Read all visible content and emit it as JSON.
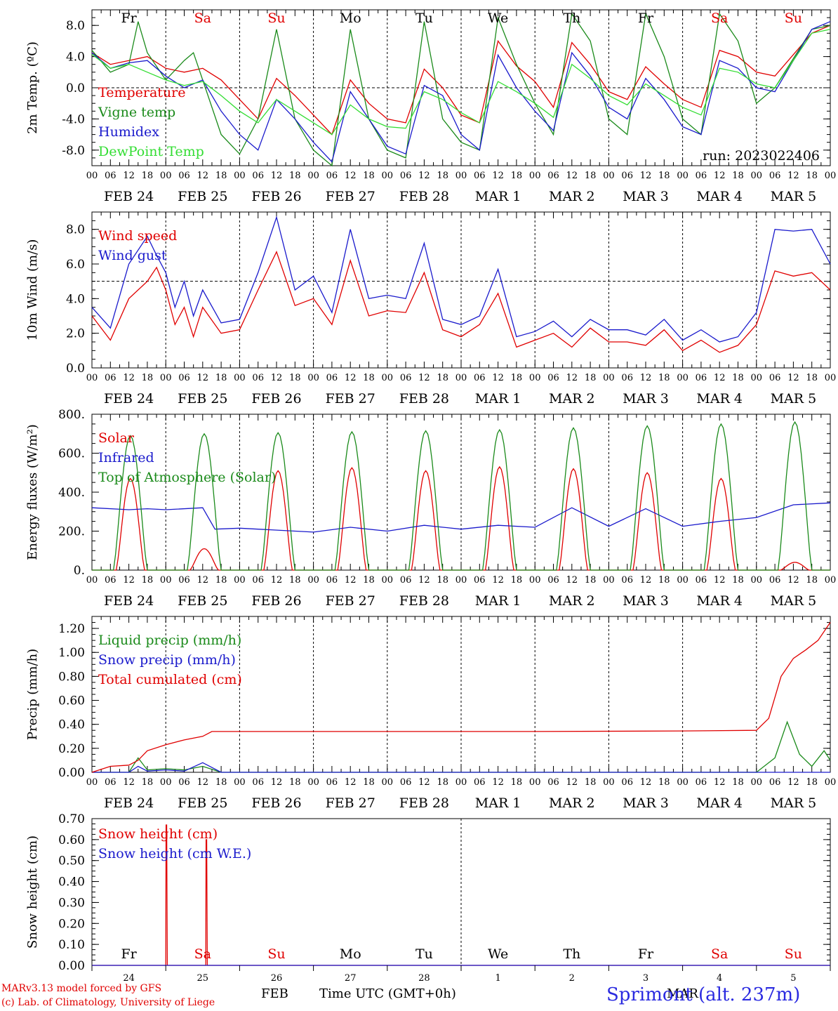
{
  "run_label": "run: 2023022406",
  "days": [
    "Fr",
    "Sa",
    "Su",
    "Mo",
    "Tu",
    "We",
    "Th",
    "Fr",
    "Sa",
    "Su"
  ],
  "day_colors": [
    "#000000",
    "#e00000",
    "#e00000",
    "#000000",
    "#000000",
    "#000000",
    "#000000",
    "#000000",
    "#e00000",
    "#e00000"
  ],
  "date_labels": [
    "FEB 24",
    "FEB 25",
    "FEB 26",
    "FEB 27",
    "FEB 28",
    "MAR  1",
    "MAR  2",
    "MAR  3",
    "MAR  4",
    "MAR  5"
  ],
  "hour_ticks": [
    "00",
    "06",
    "12",
    "18"
  ],
  "hour_tick_end": "00",
  "footer": {
    "model": "MARv3.13 model forced by GFS",
    "copyright": "(c) Lab. of Climatology, University of Liege",
    "month_feb": "FEB",
    "month_mar": "MAR",
    "time_axis": "Time UTC (GMT+0h)",
    "station": "Sprimont (alt. 237m)"
  },
  "snow_day_numbers": [
    "24",
    "25",
    "26",
    "27",
    "28",
    "1",
    "2",
    "3",
    "4",
    "5"
  ],
  "chart_data": [
    {
      "type": "line",
      "ylabel": "2m Temp. (ºC)",
      "ylim": [
        -10,
        10
      ],
      "yticks": [
        "8.0",
        "4.0",
        "0.0",
        "-4.0",
        "-8.0"
      ],
      "ytick_values": [
        8,
        4,
        0,
        -4,
        -8
      ],
      "zero_line": 0,
      "series": [
        {
          "name": "Temperature",
          "color": "#e00000",
          "x": [
            0,
            6,
            12,
            18,
            24,
            30,
            36,
            42,
            48,
            54,
            60,
            66,
            72,
            78,
            84,
            90,
            96,
            102,
            108,
            114,
            120,
            126,
            132,
            138,
            144,
            150,
            156,
            162,
            168,
            174,
            180,
            186,
            192,
            198,
            204,
            210,
            216,
            222,
            234,
            240
          ],
          "values": [
            4.5,
            3,
            3.5,
            4,
            2.5,
            2,
            2.5,
            1,
            -1.5,
            -4,
            1.2,
            -1,
            -3.5,
            -6,
            1,
            -2,
            -4,
            -4.5,
            2.4,
            0,
            -3.5,
            -4.5,
            6,
            2.8,
            0.8,
            -2.5,
            5.8,
            3,
            -0.5,
            -1.5,
            2.7,
            0.5,
            -1.5,
            -2.5,
            4.8,
            4,
            2,
            1.5,
            7,
            8
          ]
        },
        {
          "name": "Vigne temp",
          "color": "#1a8a1a",
          "x": [
            0,
            6,
            12,
            15,
            18,
            24,
            30,
            33,
            36,
            42,
            48,
            54,
            60,
            66,
            72,
            78,
            84,
            90,
            96,
            102,
            108,
            114,
            120,
            126,
            132,
            138,
            144,
            150,
            156,
            162,
            168,
            174,
            180,
            186,
            192,
            198,
            204,
            210,
            216,
            222,
            234,
            240
          ],
          "values": [
            4.8,
            2,
            3,
            8.5,
            4.5,
            1,
            3.5,
            4.5,
            1,
            -6,
            -8.5,
            -4,
            7.5,
            -4,
            -8,
            -10,
            7.5,
            -4,
            -8,
            -9,
            8.5,
            -4,
            -7,
            -8,
            9,
            3,
            -2,
            -6,
            9.5,
            6,
            -4,
            -6,
            9.5,
            4,
            -4,
            -6,
            9.5,
            6,
            -2,
            0,
            7.5,
            8
          ]
        },
        {
          "name": "Humidex",
          "color": "#1a1acc",
          "x": [
            0,
            6,
            12,
            18,
            24,
            30,
            36,
            42,
            48,
            54,
            60,
            66,
            72,
            78,
            84,
            90,
            96,
            102,
            108,
            114,
            120,
            126,
            132,
            138,
            144,
            150,
            156,
            162,
            168,
            174,
            180,
            186,
            192,
            198,
            204,
            210,
            216,
            222,
            234,
            240
          ],
          "values": [
            4.5,
            2.5,
            3.2,
            3.5,
            1.5,
            0,
            1,
            -3,
            -6,
            -8,
            -1.5,
            -4,
            -7,
            -9.5,
            -0.5,
            -4,
            -7.5,
            -8.5,
            0.3,
            -1,
            -6,
            -8,
            4.2,
            0,
            -3,
            -5.5,
            4.5,
            1.5,
            -2.5,
            -4,
            1.2,
            -1.5,
            -5,
            -6,
            3.5,
            2.5,
            0,
            -0.5,
            7.5,
            8.5
          ]
        },
        {
          "name": "DewPoint Temp",
          "color": "#33dd33",
          "x": [
            0,
            6,
            12,
            18,
            24,
            30,
            36,
            42,
            48,
            54,
            60,
            66,
            72,
            78,
            84,
            90,
            96,
            102,
            108,
            114,
            120,
            126,
            132,
            138,
            144,
            150,
            156,
            162,
            168,
            174,
            180,
            186,
            192,
            198,
            204,
            210,
            216,
            222,
            234,
            240
          ],
          "values": [
            4.3,
            2.5,
            3,
            2,
            1,
            0.3,
            0.8,
            -1,
            -3,
            -4.5,
            -1.5,
            -3,
            -4.5,
            -6,
            -2.2,
            -4,
            -5,
            -5.2,
            -0.5,
            -1.5,
            -3.2,
            -4.5,
            0.8,
            -0.5,
            -2,
            -3.8,
            3,
            1.2,
            -1,
            -2.2,
            0.5,
            -1,
            -2.5,
            -3.5,
            2.5,
            2,
            0.5,
            0,
            7,
            7.5
          ]
        }
      ]
    },
    {
      "type": "line",
      "ylabel": "10m Wind (m/s)",
      "ylim": [
        0,
        9
      ],
      "yticks": [
        "8.0",
        "6.0",
        "4.0",
        "2.0",
        "0.0"
      ],
      "ytick_values": [
        8,
        6,
        4,
        2,
        0
      ],
      "ref_line": 5,
      "series": [
        {
          "name": "Wind speed",
          "color": "#e00000",
          "x": [
            0,
            6,
            12,
            18,
            21,
            24,
            27,
            30,
            33,
            36,
            42,
            48,
            54,
            60,
            66,
            72,
            78,
            84,
            90,
            96,
            102,
            108,
            114,
            120,
            126,
            132,
            138,
            144,
            150,
            156,
            162,
            168,
            174,
            180,
            186,
            192,
            198,
            204,
            210,
            216,
            222,
            228,
            234,
            240
          ],
          "values": [
            3,
            1.6,
            4,
            5,
            5.8,
            4.5,
            2.5,
            3.5,
            1.8,
            3.5,
            2,
            2.2,
            4.5,
            6.7,
            3.6,
            4,
            2.5,
            6.2,
            3,
            3.3,
            3.2,
            5.5,
            2.2,
            1.8,
            2.5,
            4.3,
            1.2,
            1.6,
            2,
            1.2,
            2.3,
            1.5,
            1.5,
            1.3,
            2.2,
            1,
            1.6,
            0.9,
            1.3,
            2.5,
            5.6,
            5.3,
            5.5,
            4.5
          ]
        },
        {
          "name": "Wind gust",
          "color": "#1a1acc",
          "x": [
            0,
            6,
            12,
            18,
            21,
            24,
            27,
            30,
            33,
            36,
            42,
            48,
            54,
            60,
            66,
            72,
            78,
            84,
            90,
            96,
            102,
            108,
            114,
            120,
            126,
            132,
            138,
            144,
            150,
            156,
            162,
            168,
            174,
            180,
            186,
            192,
            198,
            204,
            210,
            216,
            222,
            228,
            234,
            240
          ],
          "values": [
            3.5,
            2.3,
            6,
            7.6,
            6.5,
            5.5,
            3.5,
            5,
            3,
            4.5,
            2.6,
            2.8,
            5.5,
            8.7,
            4.5,
            5.3,
            3.2,
            8,
            4,
            4.2,
            4,
            7.2,
            2.8,
            2.5,
            3,
            5.7,
            1.8,
            2.1,
            2.7,
            1.8,
            2.8,
            2.2,
            2.2,
            1.9,
            2.8,
            1.6,
            2.2,
            1.5,
            1.8,
            3.2,
            8,
            7.9,
            8,
            6
          ]
        }
      ]
    },
    {
      "type": "line",
      "ylabel": "Energy fluxes (W/m²)",
      "ylim": [
        0,
        800
      ],
      "yticks": [
        "800.",
        "600.",
        "400.",
        "200.",
        "0."
      ],
      "ytick_values": [
        800,
        600,
        400,
        200,
        0
      ],
      "series": [
        {
          "name": "Solar",
          "color": "#e00000",
          "day_peaks": [
            470,
            110,
            510,
            525,
            510,
            530,
            520,
            500,
            470,
            40
          ]
        },
        {
          "name": "Infrared",
          "color": "#1a1acc",
          "x": [
            0,
            12,
            18,
            24,
            36,
            40,
            48,
            72,
            84,
            96,
            108,
            120,
            132,
            144,
            156,
            168,
            180,
            192,
            204,
            216,
            228,
            240
          ],
          "values": [
            320,
            310,
            315,
            310,
            320,
            210,
            215,
            195,
            220,
            200,
            230,
            210,
            230,
            220,
            320,
            225,
            315,
            225,
            250,
            270,
            335,
            345
          ]
        },
        {
          "name": "Top of Atmosphere (Solar)",
          "color": "#1a8a1a",
          "day_peaks": [
            690,
            700,
            705,
            710,
            715,
            720,
            730,
            740,
            750,
            760
          ]
        }
      ]
    },
    {
      "type": "line",
      "ylabel": "Precip (mm/h)",
      "ylim": [
        0,
        1.3
      ],
      "yticks": [
        "1.20",
        "1.00",
        "0.80",
        "0.60",
        "0.40",
        "0.20",
        "0.00"
      ],
      "ytick_values": [
        1.2,
        1.0,
        0.8,
        0.6,
        0.4,
        0.2,
        0.0
      ],
      "series": [
        {
          "name": "Liquid precip (mm/h)",
          "color": "#1a8a1a",
          "x": [
            0,
            12,
            15,
            18,
            24,
            30,
            36,
            42,
            216,
            222,
            226,
            230,
            234,
            238,
            240
          ],
          "values": [
            0,
            0,
            0.12,
            0.02,
            0.03,
            0.02,
            0.05,
            0,
            0,
            0.12,
            0.42,
            0.15,
            0.05,
            0.18,
            0.1
          ]
        },
        {
          "name": "Snow precip (mm/h)",
          "color": "#1a1acc",
          "x": [
            0,
            12,
            15,
            18,
            24,
            30,
            36,
            42,
            240
          ],
          "values": [
            0,
            0,
            0.05,
            0.01,
            0.02,
            0.01,
            0.08,
            0,
            0
          ]
        },
        {
          "name": "Total cumulated (cm)",
          "color": "#e00000",
          "x": [
            0,
            6,
            12,
            15,
            18,
            24,
            30,
            36,
            39,
            48,
            96,
            144,
            192,
            216,
            220,
            224,
            228,
            232,
            236,
            240
          ],
          "values": [
            0,
            0.05,
            0.06,
            0.1,
            0.18,
            0.23,
            0.27,
            0.3,
            0.34,
            0.34,
            0.34,
            0.34,
            0.345,
            0.35,
            0.45,
            0.8,
            0.95,
            1.02,
            1.1,
            1.25
          ]
        }
      ]
    },
    {
      "type": "line",
      "ylabel": "Snow height (cm)",
      "ylim": [
        0,
        0.7
      ],
      "yticks": [
        "0.70",
        "0.60",
        "0.50",
        "0.40",
        "0.30",
        "0.20",
        "0.10",
        "0.00"
      ],
      "ytick_values": [
        0.7,
        0.6,
        0.5,
        0.4,
        0.3,
        0.2,
        0.1,
        0.0
      ],
      "series": [
        {
          "name": "Snow height (cm)",
          "color": "#e00000",
          "x": [
            0,
            24,
            24.1,
            24.3,
            24.5,
            37,
            37.1,
            37.3,
            37.5,
            240
          ],
          "values": [
            0,
            0,
            0.67,
            0.67,
            0,
            0,
            0.6,
            0.6,
            0,
            0
          ]
        },
        {
          "name": "Snow height (cm W.E.)",
          "color": "#1a1acc",
          "x": [
            0,
            240
          ],
          "values": [
            0,
            0
          ]
        }
      ]
    }
  ]
}
